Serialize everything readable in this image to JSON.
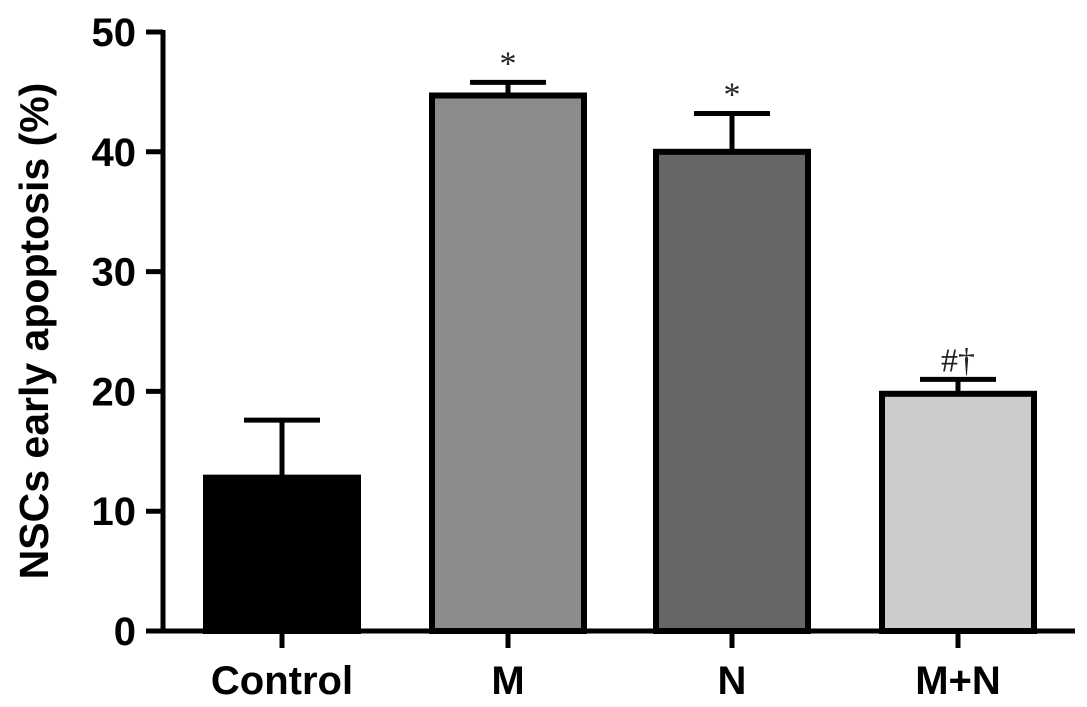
{
  "chart_data": {
    "type": "bar",
    "ylabel": "NSCs early apoptosis (%)",
    "xlabel": "",
    "ylim": [
      0,
      50
    ],
    "yticks": [
      0,
      10,
      20,
      30,
      40,
      50
    ],
    "categories": [
      "Control",
      "M",
      "N",
      "M+N"
    ],
    "values": [
      12.8,
      44.7,
      40.0,
      19.8
    ],
    "errors": [
      4.8,
      1.1,
      3.2,
      1.2
    ],
    "annotations": [
      "",
      "*",
      "*",
      "#†"
    ],
    "colors": [
      "#000000",
      "#8c8c8c",
      "#666666",
      "#cccccc"
    ],
    "grid": false
  }
}
